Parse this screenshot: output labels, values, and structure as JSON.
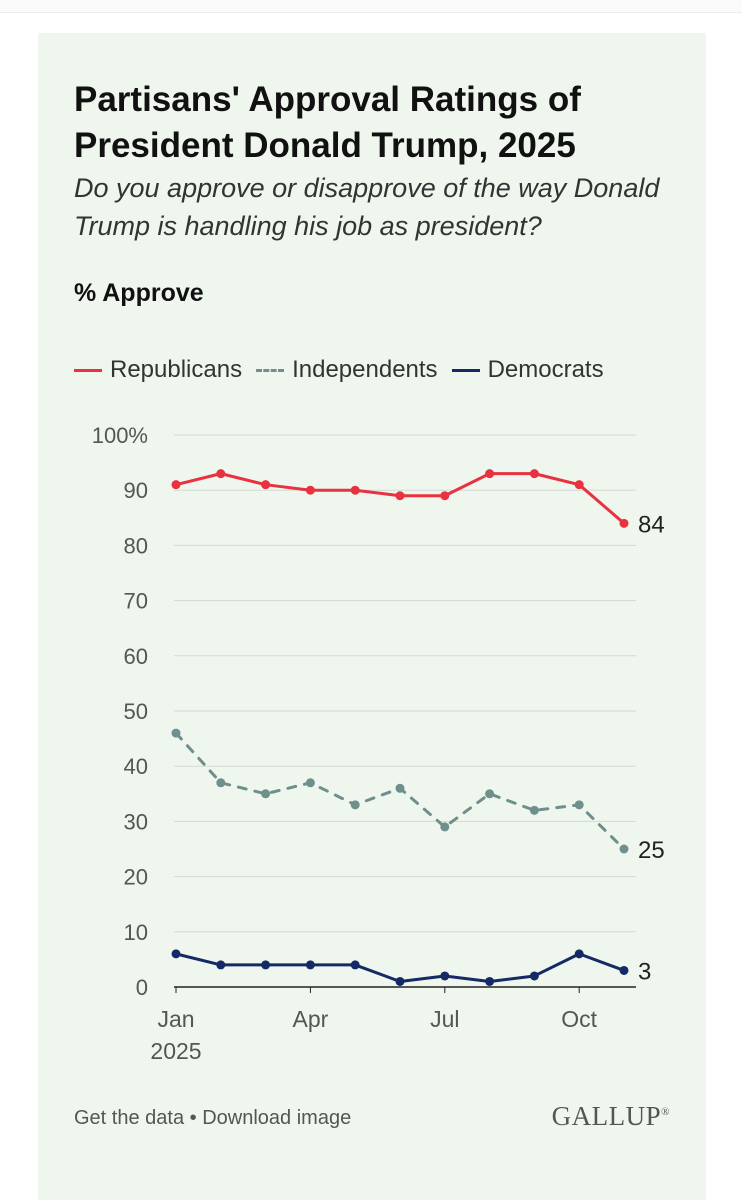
{
  "title": "Partisans' Approval Ratings of President Donald Trump, 2025",
  "subtitle": "Do you approve or disapprove of the way Donald Trump is handling his job as president?",
  "measure_label": "% Approve",
  "footer": {
    "get_data": "Get the data",
    "separator": "•",
    "download": "Download image",
    "brand": "GALLUP",
    "brand_mark": "®"
  },
  "chart_data": {
    "type": "line",
    "title": "Partisans' Approval Ratings of President Donald Trump, 2025",
    "ylabel": "% Approve",
    "ylim": [
      0,
      100
    ],
    "yticks": [
      0,
      10,
      20,
      30,
      40,
      50,
      60,
      70,
      80,
      90,
      100
    ],
    "ytick_labels": [
      "0",
      "10",
      "20",
      "30",
      "40",
      "50",
      "60",
      "70",
      "80",
      "90",
      "100%"
    ],
    "x": [
      "2025-01",
      "2025-02",
      "2025-03",
      "2025-04",
      "2025-05",
      "2025-06",
      "2025-07",
      "2025-08",
      "2025-09",
      "2025-10",
      "2025-11"
    ],
    "xticks": [
      {
        "x": "2025-01",
        "label": "Jan",
        "sublabel": "2025"
      },
      {
        "x": "2025-04",
        "label": "Apr"
      },
      {
        "x": "2025-07",
        "label": "Jul"
      },
      {
        "x": "2025-10",
        "label": "Oct"
      }
    ],
    "grid": true,
    "legend_position": "top-left",
    "series": [
      {
        "name": "Republicans",
        "color": "#e8323f",
        "style": "solid",
        "values": [
          91,
          93,
          91,
          90,
          90,
          89,
          89,
          93,
          93,
          91,
          84
        ],
        "end_label": "84"
      },
      {
        "name": "Independents",
        "color": "#6e8f8c",
        "style": "dashed",
        "values": [
          46,
          37,
          35,
          37,
          33,
          36,
          29,
          35,
          32,
          33,
          25
        ],
        "end_label": "25"
      },
      {
        "name": "Democrats",
        "color": "#142a66",
        "style": "solid",
        "values": [
          6,
          4,
          4,
          4,
          4,
          1,
          2,
          1,
          2,
          6,
          3
        ],
        "end_label": "3"
      }
    ]
  }
}
